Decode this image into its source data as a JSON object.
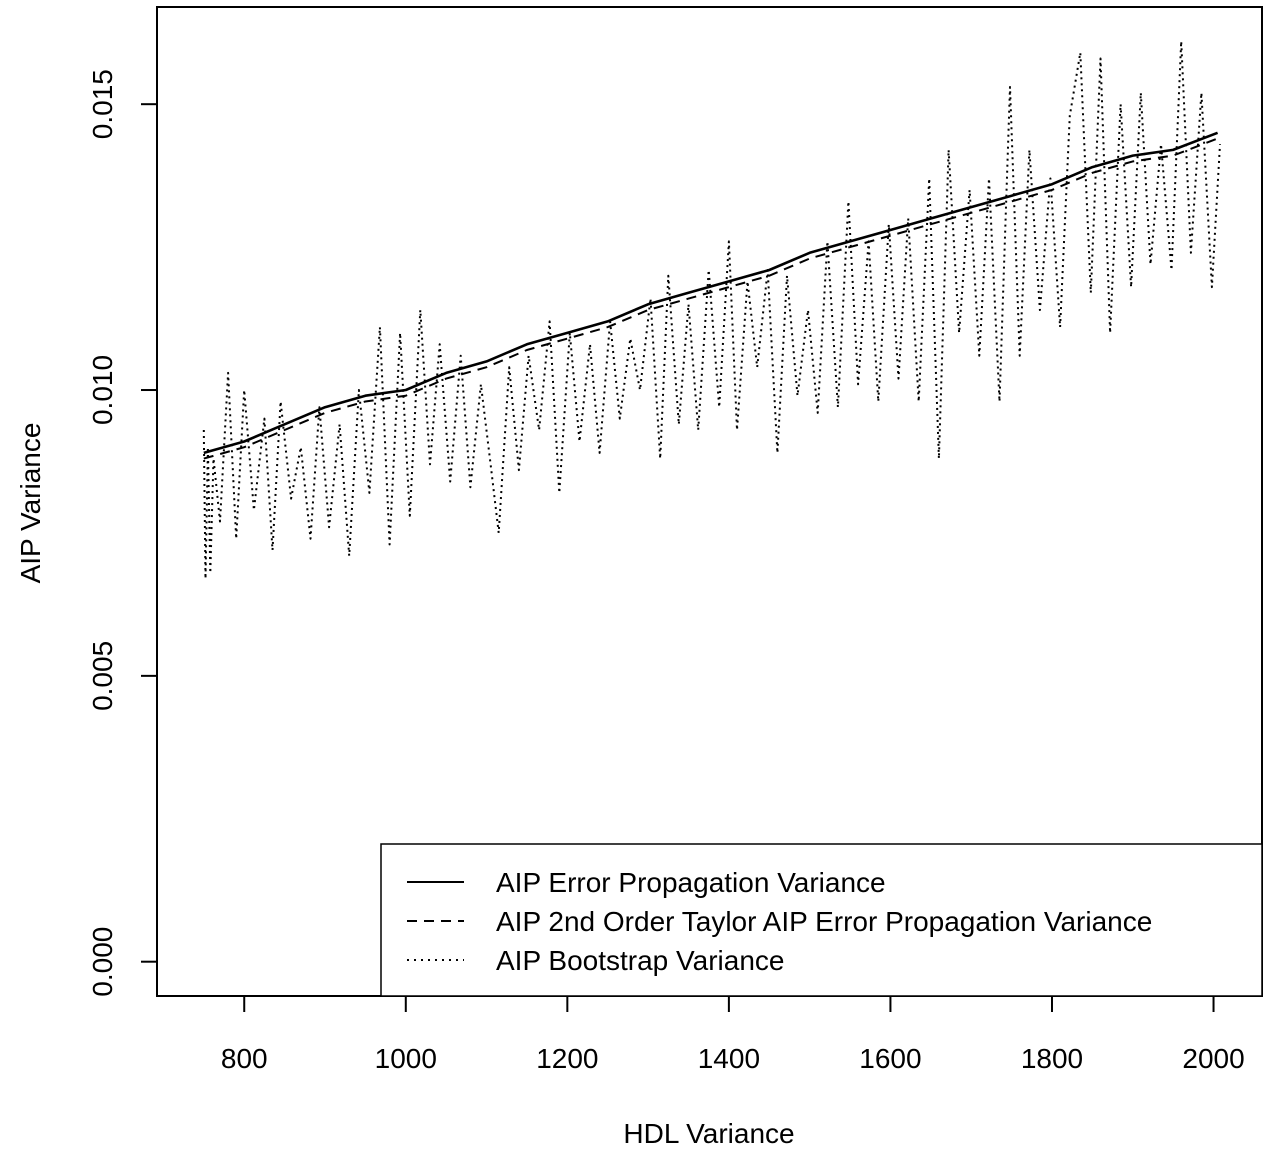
{
  "chart_data": {
    "type": "line",
    "title": "",
    "xlabel": "HDL Variance",
    "ylabel": "AIP Variance",
    "xlim": [
      692,
      2060
    ],
    "ylim": [
      -0.0006,
      0.0167
    ],
    "x_ticks": [
      800,
      1000,
      1200,
      1400,
      1600,
      1800,
      2000
    ],
    "x_tick_labels": [
      "800",
      "1000",
      "1200",
      "1400",
      "1600",
      "1800",
      "2000"
    ],
    "y_ticks": [
      0.0,
      0.005,
      0.01,
      0.015
    ],
    "y_tick_labels": [
      "0.000",
      "0.005",
      "0.010",
      "0.015"
    ],
    "grid": false,
    "legend_position": "bottom-right",
    "series": [
      {
        "name": "AIP Error Propagation Variance",
        "line_style": "solid",
        "color": "#000000",
        "x": [
          750,
          800,
          850,
          900,
          950,
          1000,
          1050,
          1100,
          1150,
          1200,
          1250,
          1300,
          1350,
          1400,
          1450,
          1500,
          1550,
          1600,
          1650,
          1700,
          1750,
          1800,
          1850,
          1900,
          1950,
          2005
        ],
        "y": [
          0.0089,
          0.0091,
          0.0094,
          0.0097,
          0.0099,
          0.01,
          0.0103,
          0.0105,
          0.0108,
          0.011,
          0.0112,
          0.0115,
          0.0117,
          0.0119,
          0.0121,
          0.0124,
          0.0126,
          0.0128,
          0.013,
          0.0132,
          0.0134,
          0.0136,
          0.0139,
          0.0141,
          0.0142,
          0.0145
        ]
      },
      {
        "name": "AIP 2nd Order Taylor AIP Error Propagation Variance",
        "line_style": "dashed",
        "color": "#000000",
        "x": [
          750,
          800,
          850,
          900,
          950,
          1000,
          1050,
          1100,
          1150,
          1200,
          1250,
          1300,
          1350,
          1400,
          1450,
          1500,
          1550,
          1600,
          1650,
          1700,
          1750,
          1800,
          1850,
          1900,
          1950,
          2005
        ],
        "y": [
          0.0088,
          0.009,
          0.0093,
          0.0096,
          0.0098,
          0.0099,
          0.0102,
          0.0104,
          0.0107,
          0.0109,
          0.0111,
          0.0114,
          0.0116,
          0.0118,
          0.012,
          0.0123,
          0.0125,
          0.0127,
          0.0129,
          0.0131,
          0.0133,
          0.0135,
          0.0138,
          0.014,
          0.0141,
          0.0144
        ]
      },
      {
        "name": "AIP Bootstrap Variance",
        "line_style": "dotted",
        "color": "#000000",
        "x": [
          750,
          752,
          755,
          758,
          762,
          770,
          780,
          790,
          800,
          812,
          825,
          835,
          845,
          858,
          870,
          882,
          893,
          905,
          918,
          930,
          942,
          955,
          968,
          980,
          993,
          1005,
          1018,
          1030,
          1042,
          1055,
          1068,
          1080,
          1093,
          1105,
          1115,
          1128,
          1140,
          1152,
          1165,
          1178,
          1190,
          1203,
          1215,
          1228,
          1240,
          1253,
          1265,
          1278,
          1290,
          1303,
          1315,
          1325,
          1338,
          1350,
          1362,
          1375,
          1388,
          1400,
          1410,
          1423,
          1435,
          1448,
          1460,
          1472,
          1485,
          1498,
          1510,
          1522,
          1535,
          1548,
          1560,
          1573,
          1585,
          1598,
          1610,
          1622,
          1635,
          1648,
          1660,
          1672,
          1685,
          1698,
          1710,
          1722,
          1735,
          1748,
          1760,
          1772,
          1785,
          1798,
          1810,
          1822,
          1835,
          1848,
          1860,
          1872,
          1885,
          1898,
          1910,
          1922,
          1935,
          1948,
          1960,
          1972,
          1985,
          1998,
          2008
        ],
        "y": [
          0.0093,
          0.0067,
          0.009,
          0.0068,
          0.0088,
          0.0077,
          0.0103,
          0.0074,
          0.01,
          0.0079,
          0.0095,
          0.0072,
          0.0098,
          0.0081,
          0.009,
          0.0074,
          0.0097,
          0.0076,
          0.0094,
          0.0071,
          0.01,
          0.0082,
          0.0111,
          0.0073,
          0.011,
          0.0078,
          0.0114,
          0.0087,
          0.0108,
          0.0084,
          0.0106,
          0.0083,
          0.0101,
          0.0087,
          0.0075,
          0.0104,
          0.0086,
          0.0106,
          0.0093,
          0.0112,
          0.0082,
          0.011,
          0.0091,
          0.0108,
          0.0089,
          0.0112,
          0.0095,
          0.0109,
          0.01,
          0.0116,
          0.0088,
          0.012,
          0.0094,
          0.0115,
          0.0093,
          0.0121,
          0.0097,
          0.0126,
          0.0093,
          0.0119,
          0.0104,
          0.0121,
          0.0089,
          0.012,
          0.0099,
          0.0114,
          0.0096,
          0.0126,
          0.0097,
          0.0133,
          0.0101,
          0.0126,
          0.0098,
          0.0129,
          0.0102,
          0.013,
          0.0098,
          0.0137,
          0.0088,
          0.0142,
          0.011,
          0.0135,
          0.0106,
          0.0137,
          0.0098,
          0.0153,
          0.0106,
          0.0142,
          0.0114,
          0.0137,
          0.0111,
          0.0148,
          0.0159,
          0.0117,
          0.0158,
          0.011,
          0.015,
          0.0118,
          0.0152,
          0.0122,
          0.0143,
          0.0121,
          0.0161,
          0.0124,
          0.0152,
          0.0118,
          0.0143
        ]
      }
    ]
  }
}
